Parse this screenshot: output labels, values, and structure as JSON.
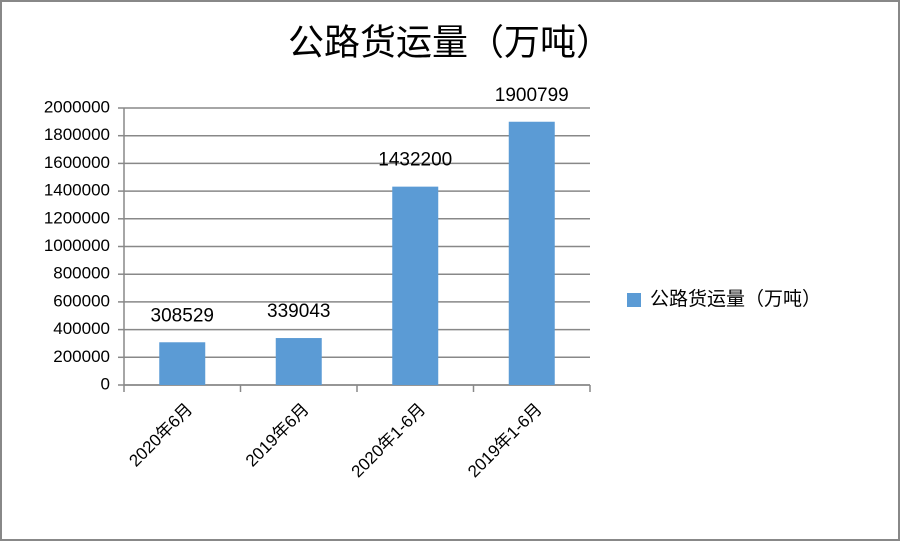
{
  "chart_data": {
    "type": "bar",
    "title": "公路货运量（万吨）",
    "categories": [
      "2020年6月",
      "2019年6月",
      "2020年1-6月",
      "2019年1-6月"
    ],
    "series": [
      {
        "name": "公路货运量（万吨）",
        "color": "#5b9bd5",
        "values": [
          308529,
          339043,
          1432200,
          1900799
        ]
      }
    ],
    "ylim": [
      0,
      2000000
    ],
    "yticks": [
      0,
      200000,
      400000,
      600000,
      800000,
      1000000,
      1200000,
      1400000,
      1600000,
      1800000,
      2000000
    ],
    "grid": true,
    "legend": "right"
  }
}
